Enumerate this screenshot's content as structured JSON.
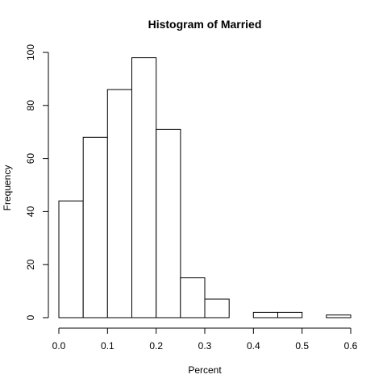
{
  "chart_data": {
    "type": "bar",
    "title": "Histogram of Married",
    "xlabel": "Percent",
    "ylabel": "Frequency",
    "bins": [
      {
        "start": 0.0,
        "end": 0.05,
        "count": 44
      },
      {
        "start": 0.05,
        "end": 0.1,
        "count": 68
      },
      {
        "start": 0.1,
        "end": 0.15,
        "count": 86
      },
      {
        "start": 0.15,
        "end": 0.2,
        "count": 98
      },
      {
        "start": 0.2,
        "end": 0.25,
        "count": 71
      },
      {
        "start": 0.25,
        "end": 0.3,
        "count": 15
      },
      {
        "start": 0.3,
        "end": 0.35,
        "count": 7
      },
      {
        "start": 0.35,
        "end": 0.4,
        "count": 0
      },
      {
        "start": 0.4,
        "end": 0.45,
        "count": 2
      },
      {
        "start": 0.45,
        "end": 0.5,
        "count": 2
      },
      {
        "start": 0.5,
        "end": 0.55,
        "count": 0
      },
      {
        "start": 0.55,
        "end": 0.6,
        "count": 1
      }
    ],
    "xlim": [
      0,
      0.6
    ],
    "ylim": [
      0,
      100
    ],
    "xticks": [
      0.0,
      0.1,
      0.2,
      0.3,
      0.4,
      0.5,
      0.6
    ],
    "xtick_labels": [
      "0.0",
      "0.1",
      "0.2",
      "0.3",
      "0.4",
      "0.5",
      "0.6"
    ],
    "yticks": [
      0,
      20,
      40,
      60,
      80,
      100
    ],
    "ytick_labels": [
      "0",
      "20",
      "40",
      "60",
      "80",
      "100"
    ],
    "grid": false,
    "legend": "none"
  }
}
